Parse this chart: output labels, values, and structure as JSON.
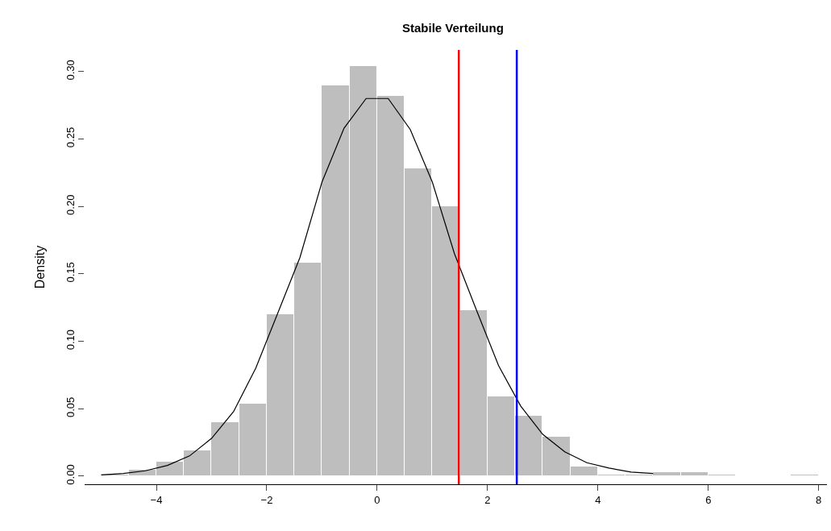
{
  "chart_data": {
    "type": "histogram",
    "title": "Stabile Verteilung",
    "ylabel": "Density",
    "bins": [
      -5,
      -4.5,
      -4,
      -3.5,
      -3,
      -2.5,
      -2,
      -1.5,
      -1,
      -0.5,
      0,
      0.5,
      1,
      1.5,
      2,
      2.5,
      3,
      3.5,
      4,
      4.5,
      5,
      5.5,
      6,
      6.5,
      7,
      7.5,
      8
    ],
    "values": [
      0.001,
      0.005,
      0.011,
      0.019,
      0.04,
      0.054,
      0.12,
      0.158,
      0.29,
      0.304,
      0.282,
      0.228,
      0.2,
      0.123,
      0.059,
      0.045,
      0.029,
      0.007,
      0.001,
      0.001,
      0.003,
      0.003,
      0.001,
      0,
      0,
      0.001
    ],
    "color": "#bebebe",
    "series": [
      {
        "type": "line",
        "color": "#000000",
        "x": [
          -5,
          -4.6,
          -4.2,
          -3.8,
          -3.4,
          -3.0,
          -2.6,
          -2.2,
          -1.8,
          -1.4,
          -1.0,
          -0.6,
          -0.2,
          0.2,
          0.6,
          1.0,
          1.4,
          1.8,
          2.2,
          2.6,
          3.0,
          3.4,
          3.8,
          4.2,
          4.6,
          5.0
        ],
        "values": [
          0.001,
          0.002,
          0.004,
          0.008,
          0.015,
          0.028,
          0.048,
          0.08,
          0.121,
          0.162,
          0.218,
          0.258,
          0.28,
          0.28,
          0.257,
          0.218,
          0.165,
          0.123,
          0.082,
          0.052,
          0.031,
          0.018,
          0.01,
          0.006,
          0.003,
          0.002
        ]
      }
    ],
    "ref_lines": [
      {
        "axis": "x",
        "value": 1.48,
        "color": "#ff0000"
      },
      {
        "axis": "x",
        "value": 2.53,
        "color": "#0000ff"
      }
    ],
    "xlim": [
      -5.3,
      8.15
    ],
    "ylim": [
      -0.006,
      0.316
    ],
    "xticks": [
      -4,
      -2,
      0,
      2,
      4,
      6,
      8
    ],
    "yticks": [
      {
        "value": 0,
        "label": "0.00"
      },
      0.05,
      {
        "value": 0.1,
        "label": "0.10"
      },
      0.15,
      {
        "value": 0.2,
        "label": "0.20"
      },
      0.25,
      {
        "value": 0.3,
        "label": "0.30"
      }
    ]
  }
}
